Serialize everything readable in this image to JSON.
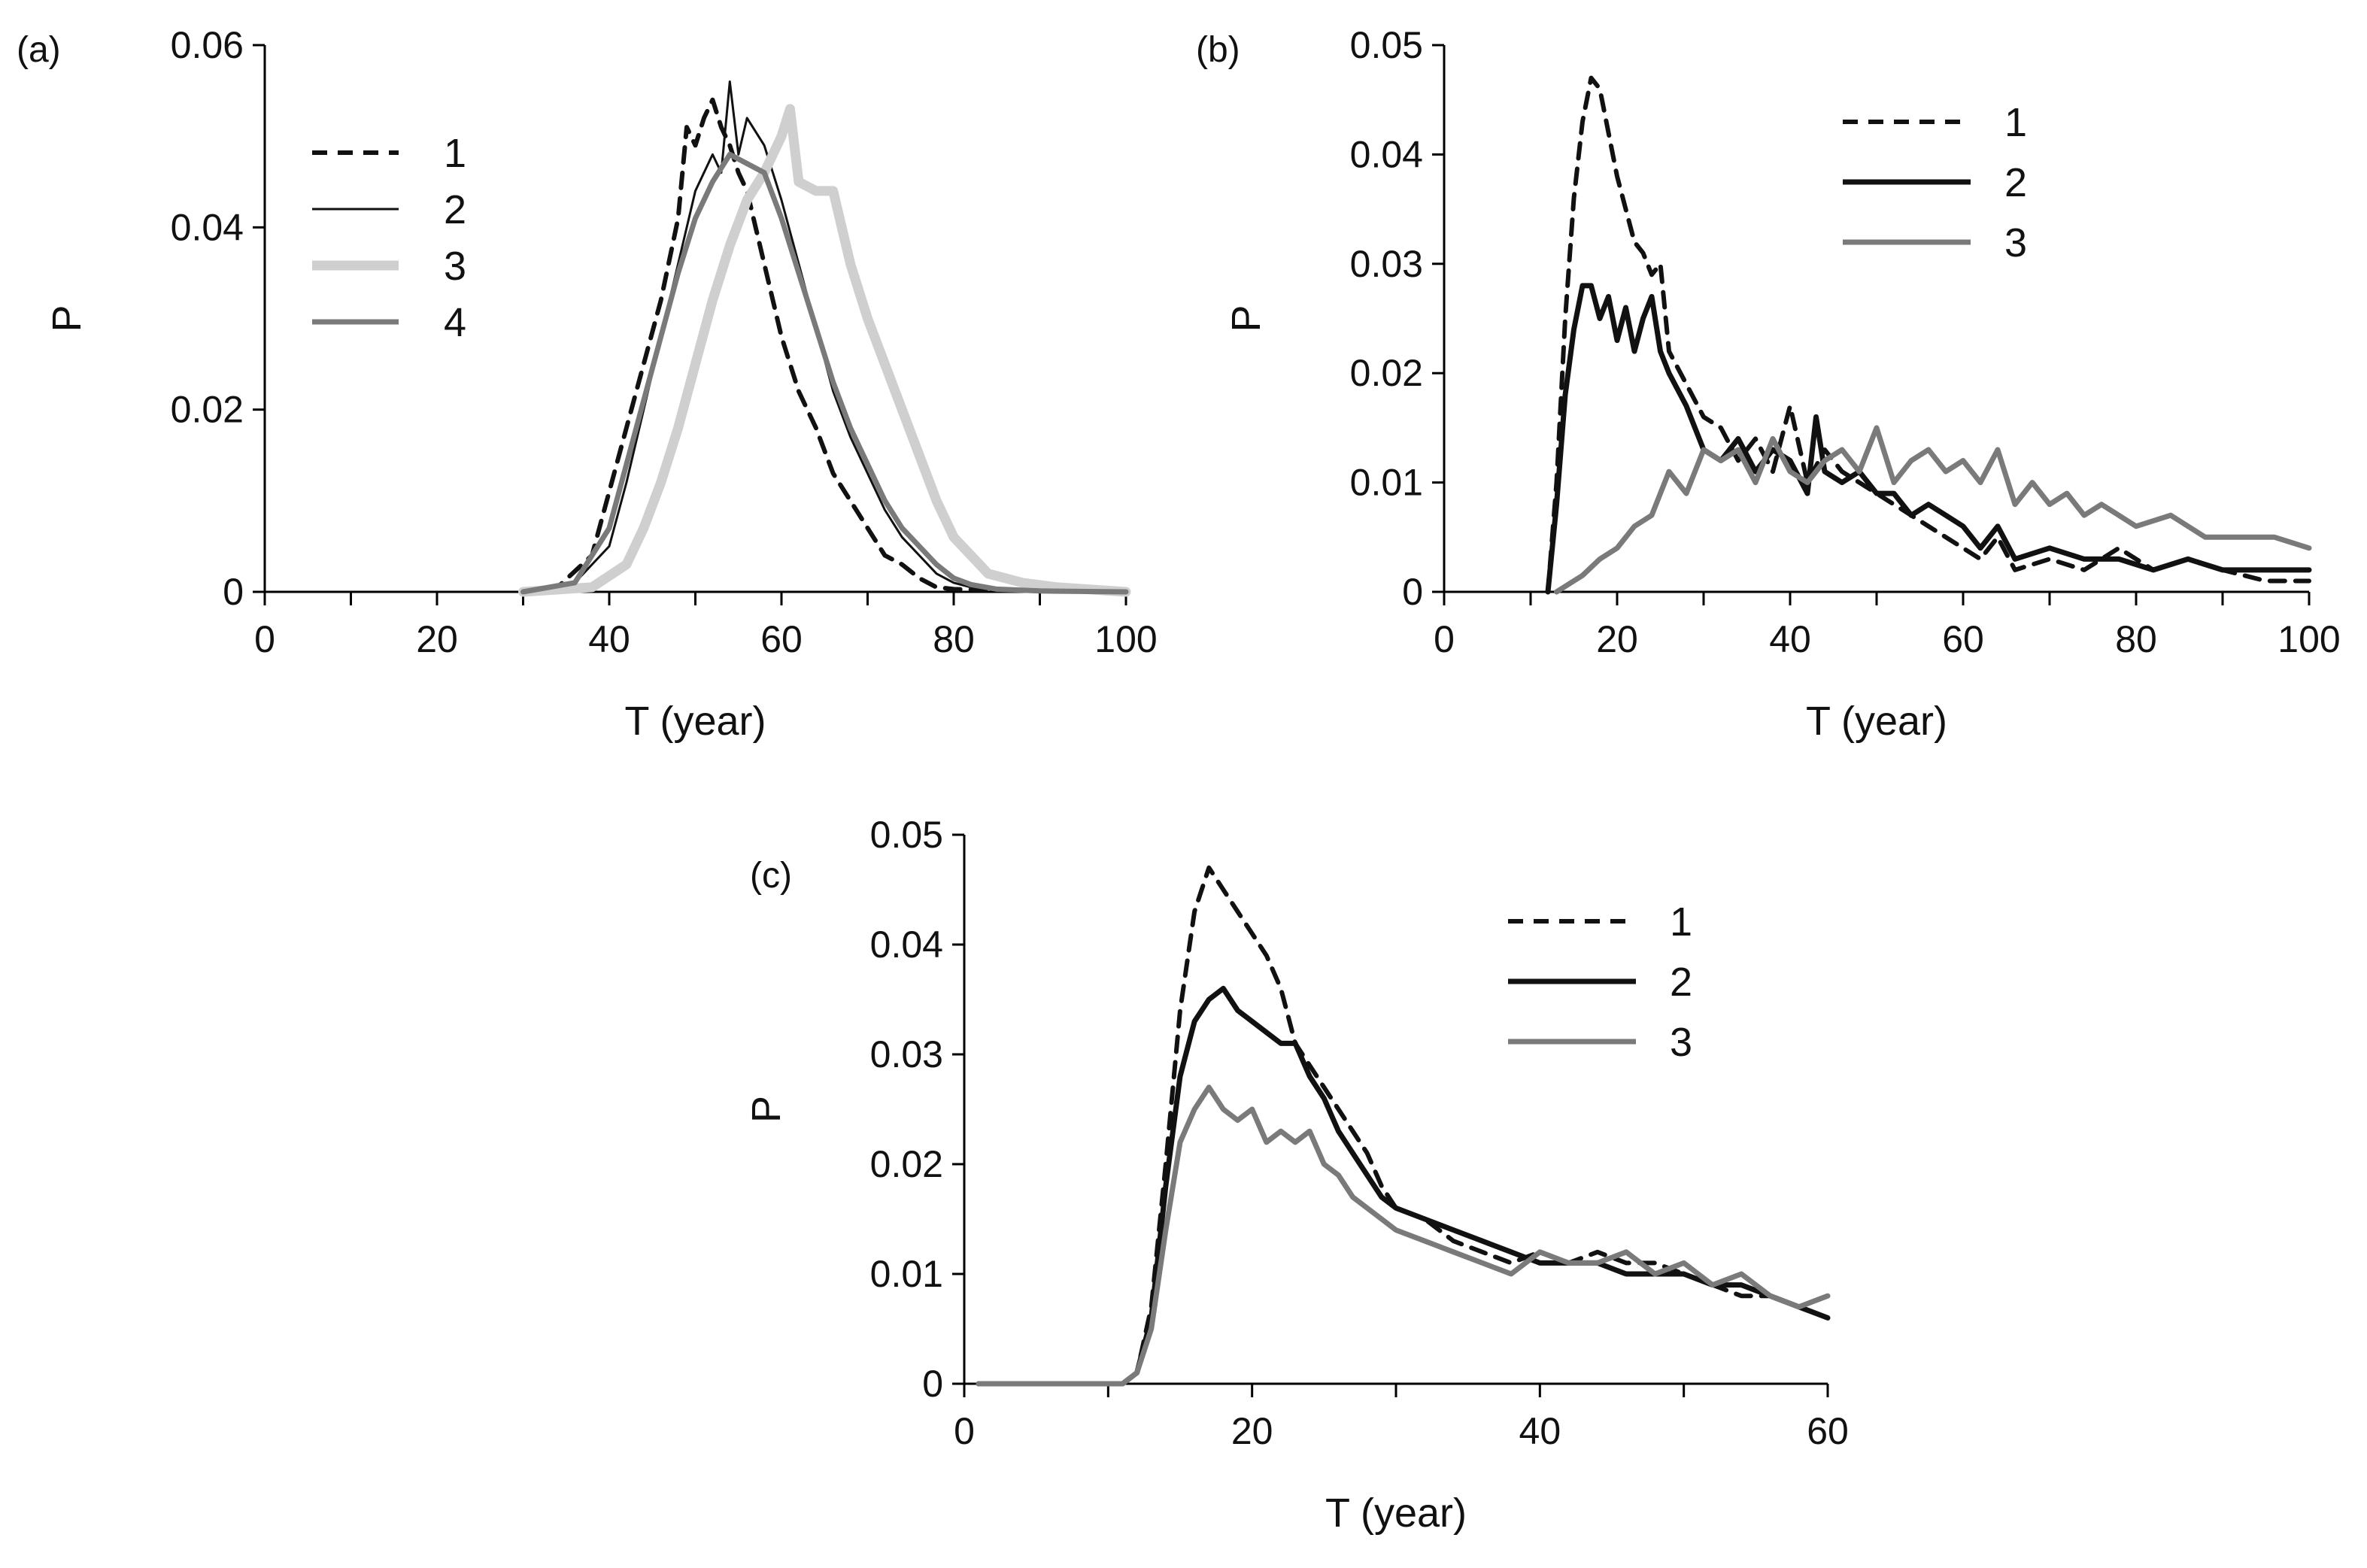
{
  "chart_data": [
    {
      "type": "line",
      "panel": "(a)",
      "xlabel": "T (year)",
      "ylabel": "P",
      "xlim": [
        0,
        100
      ],
      "ylim": [
        0,
        0.06
      ],
      "xticks": [
        "0",
        "20",
        "40",
        "60",
        "80",
        "100"
      ],
      "yticks": [
        "0",
        "0.02",
        "0.04",
        "0.06"
      ],
      "legend_position": "top-left",
      "series": [
        {
          "name": "1",
          "style": "dashed-black",
          "x": [
            30,
            34,
            38,
            40,
            42,
            44,
            46,
            48,
            49,
            50,
            51,
            52,
            53,
            54,
            55,
            56,
            58,
            60,
            62,
            64,
            66,
            68,
            70,
            72,
            74,
            76,
            78,
            80,
            85,
            90,
            100
          ],
          "y": [
            0,
            0.0005,
            0.004,
            0.011,
            0.018,
            0.025,
            0.032,
            0.041,
            0.051,
            0.049,
            0.052,
            0.054,
            0.051,
            0.049,
            0.046,
            0.044,
            0.036,
            0.028,
            0.022,
            0.018,
            0.013,
            0.01,
            0.007,
            0.004,
            0.003,
            0.0015,
            0.0005,
            0.0003,
            0.0002,
            0.0001,
            0
          ]
        },
        {
          "name": "2",
          "style": "thin-black",
          "x": [
            30,
            36,
            40,
            42,
            44,
            46,
            48,
            50,
            52,
            53,
            54,
            55,
            56,
            58,
            60,
            62,
            64,
            66,
            68,
            70,
            72,
            74,
            76,
            78,
            80,
            82,
            85,
            90,
            100
          ],
          "y": [
            0,
            0.001,
            0.005,
            0.012,
            0.02,
            0.028,
            0.036,
            0.044,
            0.048,
            0.046,
            0.056,
            0.048,
            0.052,
            0.049,
            0.043,
            0.036,
            0.029,
            0.022,
            0.017,
            0.013,
            0.009,
            0.006,
            0.004,
            0.002,
            0.001,
            0.0005,
            0.0002,
            0.0001,
            0
          ]
        },
        {
          "name": "3",
          "style": "thick-lightgray",
          "x": [
            30,
            38,
            42,
            44,
            46,
            48,
            50,
            52,
            54,
            56,
            58,
            60,
            61,
            62,
            64,
            66,
            68,
            70,
            72,
            74,
            76,
            78,
            80,
            82,
            84,
            88,
            92,
            100
          ],
          "y": [
            0,
            0.0005,
            0.003,
            0.007,
            0.012,
            0.018,
            0.025,
            0.032,
            0.038,
            0.043,
            0.046,
            0.05,
            0.053,
            0.045,
            0.044,
            0.044,
            0.036,
            0.03,
            0.025,
            0.02,
            0.015,
            0.01,
            0.006,
            0.004,
            0.002,
            0.001,
            0.0005,
            0
          ]
        },
        {
          "name": "4",
          "style": "medium-gray",
          "x": [
            30,
            36,
            40,
            42,
            44,
            46,
            48,
            50,
            52,
            54,
            56,
            58,
            60,
            62,
            64,
            66,
            68,
            70,
            72,
            74,
            76,
            78,
            80,
            82,
            85,
            90,
            100
          ],
          "y": [
            0,
            0.001,
            0.007,
            0.014,
            0.021,
            0.028,
            0.035,
            0.041,
            0.045,
            0.048,
            0.047,
            0.046,
            0.041,
            0.035,
            0.029,
            0.023,
            0.018,
            0.014,
            0.01,
            0.007,
            0.005,
            0.003,
            0.0015,
            0.0008,
            0.0003,
            0.0001,
            0
          ]
        }
      ]
    },
    {
      "type": "line",
      "panel": "(b)",
      "xlabel": "T (year)",
      "ylabel": "P",
      "xlim": [
        0,
        100
      ],
      "ylim": [
        0,
        0.05
      ],
      "xticks": [
        "0",
        "20",
        "40",
        "60",
        "80",
        "100"
      ],
      "yticks": [
        "0",
        "0.01",
        "0.02",
        "0.03",
        "0.04",
        "0.05"
      ],
      "legend_position": "top-right",
      "series": [
        {
          "name": "1",
          "style": "dashed-black",
          "x": [
            12,
            13,
            14,
            15,
            16,
            17,
            18,
            19,
            20,
            21,
            22,
            23,
            24,
            25,
            26,
            28,
            30,
            32,
            34,
            36,
            38,
            40,
            42,
            44,
            46,
            48,
            50,
            52,
            54,
            56,
            58,
            60,
            62,
            64,
            66,
            70,
            74,
            78,
            82,
            86,
            90,
            95,
            100
          ],
          "y": [
            0,
            0.01,
            0.025,
            0.036,
            0.043,
            0.047,
            0.046,
            0.042,
            0.038,
            0.035,
            0.032,
            0.031,
            0.029,
            0.03,
            0.022,
            0.019,
            0.016,
            0.015,
            0.012,
            0.014,
            0.011,
            0.017,
            0.01,
            0.013,
            0.011,
            0.01,
            0.009,
            0.008,
            0.007,
            0.006,
            0.005,
            0.004,
            0.003,
            0.005,
            0.002,
            0.003,
            0.002,
            0.004,
            0.002,
            0.003,
            0.002,
            0.001,
            0.001
          ]
        },
        {
          "name": "2",
          "style": "thick-black",
          "x": [
            12,
            13,
            14,
            15,
            16,
            17,
            18,
            19,
            20,
            21,
            22,
            23,
            24,
            25,
            26,
            28,
            30,
            32,
            34,
            36,
            38,
            40,
            42,
            43,
            44,
            46,
            48,
            50,
            52,
            54,
            56,
            58,
            60,
            62,
            64,
            66,
            70,
            74,
            78,
            82,
            86,
            90,
            95,
            100
          ],
          "y": [
            0,
            0.008,
            0.018,
            0.024,
            0.028,
            0.028,
            0.025,
            0.027,
            0.023,
            0.026,
            0.022,
            0.025,
            0.027,
            0.022,
            0.02,
            0.017,
            0.013,
            0.012,
            0.014,
            0.011,
            0.013,
            0.012,
            0.009,
            0.016,
            0.011,
            0.01,
            0.011,
            0.009,
            0.009,
            0.007,
            0.008,
            0.007,
            0.006,
            0.004,
            0.006,
            0.003,
            0.004,
            0.003,
            0.003,
            0.002,
            0.003,
            0.002,
            0.002,
            0.002
          ]
        },
        {
          "name": "3",
          "style": "medium-gray",
          "x": [
            13,
            14,
            16,
            18,
            20,
            22,
            24,
            26,
            28,
            30,
            32,
            34,
            36,
            38,
            40,
            42,
            44,
            46,
            48,
            50,
            52,
            54,
            56,
            58,
            60,
            62,
            64,
            66,
            68,
            70,
            72,
            74,
            76,
            78,
            80,
            84,
            88,
            92,
            96,
            100
          ],
          "y": [
            0,
            0.0005,
            0.0015,
            0.003,
            0.004,
            0.006,
            0.007,
            0.011,
            0.009,
            0.013,
            0.012,
            0.013,
            0.01,
            0.014,
            0.011,
            0.01,
            0.012,
            0.013,
            0.011,
            0.015,
            0.01,
            0.012,
            0.013,
            0.011,
            0.012,
            0.01,
            0.013,
            0.008,
            0.01,
            0.008,
            0.009,
            0.007,
            0.008,
            0.007,
            0.006,
            0.007,
            0.005,
            0.005,
            0.005,
            0.004
          ]
        }
      ]
    },
    {
      "type": "line",
      "panel": "(c)",
      "xlabel": "T (year)",
      "ylabel": "P",
      "xlim": [
        0,
        60
      ],
      "ylim": [
        0,
        0.05
      ],
      "xticks": [
        "0",
        "20",
        "40",
        "60"
      ],
      "yticks": [
        "0",
        "0.01",
        "0.02",
        "0.03",
        "0.04",
        "0.05"
      ],
      "legend_position": "top-right",
      "series": [
        {
          "name": "1",
          "style": "dashed-black",
          "x": [
            1,
            11,
            12,
            13,
            14,
            15,
            16,
            17,
            18,
            19,
            20,
            21,
            22,
            23,
            24,
            25,
            26,
            27,
            28,
            29,
            30,
            32,
            34,
            36,
            38,
            40,
            42,
            44,
            46,
            48,
            50,
            52,
            54,
            56,
            58,
            60
          ],
          "y": [
            0,
            0,
            0.001,
            0.007,
            0.02,
            0.034,
            0.043,
            0.047,
            0.045,
            0.043,
            0.041,
            0.039,
            0.036,
            0.031,
            0.029,
            0.027,
            0.025,
            0.023,
            0.021,
            0.018,
            0.016,
            0.015,
            0.013,
            0.012,
            0.011,
            0.012,
            0.011,
            0.012,
            0.011,
            0.011,
            0.01,
            0.009,
            0.008,
            0.008,
            0.007,
            0.006
          ]
        },
        {
          "name": "2",
          "style": "thick-black",
          "x": [
            1,
            11,
            12,
            13,
            14,
            15,
            16,
            17,
            18,
            19,
            20,
            21,
            22,
            23,
            24,
            25,
            26,
            27,
            28,
            29,
            30,
            32,
            34,
            36,
            38,
            40,
            42,
            44,
            46,
            48,
            50,
            52,
            54,
            56,
            58,
            60
          ],
          "y": [
            0,
            0,
            0.001,
            0.006,
            0.018,
            0.028,
            0.033,
            0.035,
            0.036,
            0.034,
            0.033,
            0.032,
            0.031,
            0.031,
            0.028,
            0.026,
            0.023,
            0.021,
            0.019,
            0.017,
            0.016,
            0.015,
            0.014,
            0.013,
            0.012,
            0.011,
            0.011,
            0.011,
            0.01,
            0.01,
            0.01,
            0.009,
            0.009,
            0.008,
            0.007,
            0.006
          ]
        },
        {
          "name": "3",
          "style": "medium-gray",
          "x": [
            1,
            11,
            12,
            13,
            14,
            15,
            16,
            17,
            18,
            19,
            20,
            21,
            22,
            23,
            24,
            25,
            26,
            27,
            28,
            29,
            30,
            32,
            34,
            36,
            38,
            40,
            42,
            44,
            46,
            48,
            50,
            52,
            54,
            56,
            58,
            60
          ],
          "y": [
            0,
            0,
            0.001,
            0.005,
            0.014,
            0.022,
            0.025,
            0.027,
            0.025,
            0.024,
            0.025,
            0.022,
            0.023,
            0.022,
            0.023,
            0.02,
            0.019,
            0.017,
            0.016,
            0.015,
            0.014,
            0.013,
            0.012,
            0.011,
            0.01,
            0.012,
            0.011,
            0.011,
            0.012,
            0.01,
            0.011,
            0.009,
            0.01,
            0.008,
            0.007,
            0.008
          ]
        }
      ]
    }
  ]
}
